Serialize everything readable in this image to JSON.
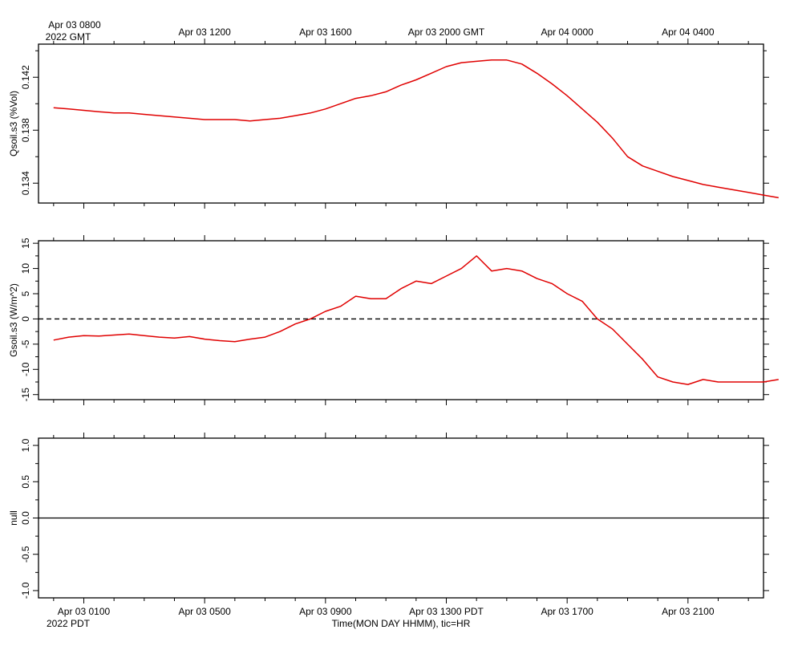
{
  "chart_data": [
    {
      "type": "line",
      "ylabel": "Qsoil.s3 (%Vol)",
      "ylim": [
        0.1325,
        0.1445
      ],
      "yticks": [
        0.134,
        0.138,
        0.142
      ],
      "ytick_labels": [
        "0.134",
        "0.138",
        "0.142"
      ],
      "x_range_hours": [
        0,
        24
      ],
      "series": [
        {
          "name": "Qsoil.s3",
          "color": "#e00000",
          "x": [
            0,
            0.5,
            1,
            1.5,
            2,
            2.5,
            3,
            3.5,
            4,
            4.5,
            5,
            5.5,
            6,
            6.5,
            7,
            7.5,
            8,
            8.5,
            9,
            9.5,
            10,
            10.5,
            11,
            11.5,
            12,
            12.5,
            13,
            13.5,
            14,
            14.5,
            15,
            15.5,
            16,
            16.5,
            17,
            17.5,
            18,
            18.5,
            19,
            19.5,
            20,
            20.5,
            21,
            21.5,
            22,
            22.5,
            23,
            23.5,
            24
          ],
          "y": [
            0.1397,
            0.1396,
            0.1395,
            0.1394,
            0.1393,
            0.1393,
            0.1392,
            0.1391,
            0.139,
            0.1389,
            0.1388,
            0.1388,
            0.1388,
            0.1387,
            0.1388,
            0.1389,
            0.1391,
            0.1393,
            0.1396,
            0.14,
            0.1404,
            0.1406,
            0.1409,
            0.1414,
            0.1418,
            0.1423,
            0.1428,
            0.1431,
            0.1432,
            0.1433,
            0.1433,
            0.143,
            0.1423,
            0.1415,
            0.1406,
            0.1396,
            0.1386,
            0.1374,
            0.136,
            0.1353,
            0.1349,
            0.1345,
            0.1342,
            0.1339,
            0.1337,
            0.1335,
            0.1333,
            0.1331,
            0.1329
          ]
        }
      ]
    },
    {
      "type": "line",
      "ylabel": "Gsoil.s3 (W/m^2)",
      "ylim": [
        -16,
        15.5
      ],
      "yticks": [
        -15,
        -10,
        -5,
        0,
        5,
        10,
        15
      ],
      "ytick_labels": [
        "-15",
        "-10",
        "-5",
        "0",
        "5",
        "10",
        "15"
      ],
      "reference_line": 0,
      "x_range_hours": [
        0,
        24
      ],
      "series": [
        {
          "name": "Gsoil.s3",
          "color": "#e00000",
          "x": [
            0,
            0.5,
            1,
            1.5,
            2,
            2.5,
            3,
            3.5,
            4,
            4.5,
            5,
            5.5,
            6,
            6.5,
            7,
            7.5,
            8,
            8.5,
            9,
            9.5,
            10,
            10.5,
            11,
            11.5,
            12,
            12.5,
            13,
            13.5,
            14,
            14.5,
            15,
            15.5,
            16,
            16.5,
            17,
            17.5,
            18,
            18.5,
            19,
            19.5,
            20,
            20.5,
            21,
            21.5,
            22,
            22.5,
            23,
            23.5,
            24
          ],
          "y": [
            -4.2,
            -3.6,
            -3.3,
            -3.4,
            -3.2,
            -3.0,
            -3.3,
            -3.6,
            -3.8,
            -3.5,
            -4.0,
            -4.3,
            -4.5,
            -4.0,
            -3.6,
            -2.5,
            -1.0,
            0.0,
            1.5,
            2.5,
            4.5,
            4.0,
            4.0,
            6.0,
            7.5,
            7.0,
            8.5,
            10.0,
            12.5,
            9.5,
            10.0,
            9.5,
            8.0,
            7.0,
            5.0,
            3.5,
            0.0,
            -2.0,
            -5.0,
            -8.0,
            -11.5,
            -12.5,
            -13.0,
            -12.0,
            -12.5,
            -12.5,
            -12.5,
            -12.5,
            -12.0
          ]
        }
      ]
    },
    {
      "type": "line",
      "ylabel": "null",
      "ylim": [
        -1.1,
        1.1
      ],
      "yticks": [
        -1.0,
        -0.5,
        0.0,
        0.5,
        1.0
      ],
      "ytick_labels": [
        "-1.0",
        "-0.5",
        "0.0",
        "0.5",
        "1.0"
      ],
      "reference_line": 0,
      "x_range_hours": [
        0,
        24
      ],
      "series": []
    }
  ],
  "top_axis": {
    "corner_label_line1": "Apr 03 0800",
    "corner_label_line2": "2022 GMT",
    "ticks": [
      {
        "hour": 5,
        "label": "Apr 03 1200"
      },
      {
        "hour": 9,
        "label": "Apr 03 1600"
      },
      {
        "hour": 13,
        "label": "Apr 03 2000 GMT"
      },
      {
        "hour": 17,
        "label": "Apr 04 0000"
      },
      {
        "hour": 21,
        "label": "Apr 04 0400"
      }
    ]
  },
  "bottom_axis": {
    "ticks": [
      {
        "hour": 1,
        "label": "Apr 03 0100"
      },
      {
        "hour": 5,
        "label": "Apr 03 0500"
      },
      {
        "hour": 9,
        "label": "Apr 03 0900"
      },
      {
        "hour": 13,
        "label": "Apr 03 1300 PDT"
      },
      {
        "hour": 17,
        "label": "Apr 03 1700"
      },
      {
        "hour": 21,
        "label": "Apr 03 2100"
      }
    ],
    "year_label": "2022 PDT",
    "axis_title": "Time(MON DAY HHMM), tic=HR"
  }
}
